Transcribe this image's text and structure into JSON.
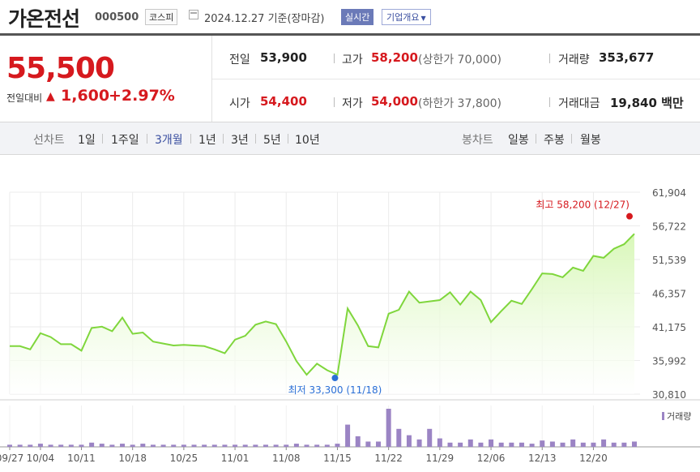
{
  "header": {
    "name": "가온전선",
    "code": "000500",
    "market": "코스피",
    "date": "2024.12.27 기준(장마감)",
    "realtime": "실시간",
    "company_info": "기업개요"
  },
  "price": {
    "current": "55,500",
    "change_label": "전일대비",
    "change_arrow": "▲",
    "change": "1,600",
    "change_pct": "+2.97%"
  },
  "stats": {
    "prev_label": "전일",
    "prev": "53,900",
    "high_label": "고가",
    "high": "58,200",
    "upper_limit": "(상한가 70,000)",
    "volume_label": "거래량",
    "volume": "353,677",
    "open_label": "시가",
    "open": "54,400",
    "low_label": "저가",
    "low": "54,000",
    "lower_limit": "(하한가 37,800)",
    "amount_label": "거래대금",
    "amount": "19,840 백만"
  },
  "period_bar": {
    "line_label": "선차트",
    "line_items": [
      "1일",
      "1주일",
      "3개월",
      "1년",
      "3년",
      "5년",
      "10년"
    ],
    "line_selected": "3개월",
    "candle_label": "봉차트",
    "candle_items": [
      "일봉",
      "주봉",
      "월봉"
    ]
  },
  "colors": {
    "up": "#d6191e",
    "line": "#7fd63c",
    "area": "#d8f7b8",
    "volume_bar": "#9b84c4",
    "low_marker": "#2a6fd6",
    "selected": "#3a4fa0"
  },
  "chart_data": {
    "type": "area",
    "x": [
      "09/27",
      "09/30",
      "10/02",
      "10/04",
      "10/07",
      "10/08",
      "10/10",
      "10/11",
      "10/14",
      "10/15",
      "10/16",
      "10/17",
      "10/18",
      "10/21",
      "10/22",
      "10/23",
      "10/24",
      "10/25",
      "10/28",
      "10/29",
      "10/30",
      "10/31",
      "11/01",
      "11/04",
      "11/05",
      "11/06",
      "11/07",
      "11/08",
      "11/11",
      "11/12",
      "11/13",
      "11/14",
      "11/15",
      "11/18",
      "11/19",
      "11/20",
      "11/21",
      "11/22",
      "11/25",
      "11/26",
      "11/27",
      "11/28",
      "11/29",
      "12/02",
      "12/03",
      "12/04",
      "12/05",
      "12/06",
      "12/09",
      "12/10",
      "12/11",
      "12/12",
      "12/13",
      "12/16",
      "12/17",
      "12/18",
      "12/19",
      "12/20",
      "12/23",
      "12/24",
      "12/26",
      "12/27"
    ],
    "close": [
      38200,
      38200,
      37700,
      40200,
      39600,
      38500,
      38500,
      37500,
      41000,
      41200,
      40500,
      42600,
      40100,
      40300,
      38900,
      38600,
      38300,
      38400,
      38300,
      38200,
      37700,
      37100,
      39200,
      39800,
      41500,
      42000,
      41600,
      38900,
      35900,
      33800,
      35500,
      34500,
      33800,
      44000,
      41400,
      38200,
      38000,
      43200,
      43800,
      46600,
      44900,
      45100,
      45300,
      46500,
      44600,
      46600,
      45300,
      41900,
      43600,
      45200,
      44700,
      47000,
      49400,
      49300,
      48800,
      50300,
      49800,
      52100,
      51800,
      53200,
      53900,
      55500
    ],
    "volume": [
      2,
      2,
      2,
      3,
      2,
      2,
      2,
      2,
      4,
      3,
      2,
      3,
      2,
      3,
      2,
      2,
      2,
      2,
      2,
      2,
      2,
      2,
      2,
      2,
      2,
      2,
      2,
      2,
      3,
      2,
      2,
      2,
      3,
      21,
      10,
      5,
      5,
      36,
      17,
      11,
      7,
      17,
      8,
      4,
      4,
      7,
      4,
      7,
      4,
      4,
      4,
      3,
      6,
      5,
      4,
      7,
      4,
      4,
      7,
      4,
      4,
      5
    ],
    "y_ticks": [
      "61,904",
      "56,722",
      "51,539",
      "46,357",
      "41,175",
      "35,992",
      "30,810"
    ],
    "ylim": [
      30810,
      61904
    ],
    "x_tick_labels": [
      "09/27",
      "10/04",
      "10/11",
      "10/18",
      "10/25",
      "11/01",
      "11/08",
      "11/15",
      "11/22",
      "11/29",
      "12/06",
      "12/13",
      "12/20"
    ],
    "high_annotation": "최고 58,200 (12/27)",
    "low_annotation": "최저 33,300 (11/18)",
    "volume_label": "거래량",
    "grid": true
  }
}
